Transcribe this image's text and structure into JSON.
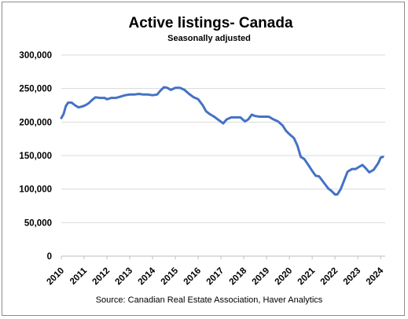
{
  "chart_data": {
    "type": "line",
    "title": "Active listings- Canada",
    "subtitle": "Seasonally adjusted",
    "source": "Source: Canadian Real Estate Association, Haver Analytics",
    "xlabel": "",
    "ylabel": "",
    "ylim": [
      0,
      300000
    ],
    "yticks": [
      0,
      50000,
      100000,
      150000,
      200000,
      250000,
      300000
    ],
    "ytick_labels": [
      "0",
      "50,000",
      "100,000",
      "150,000",
      "200,000",
      "250,000",
      "300,000"
    ],
    "xlim": [
      2010,
      2024.2
    ],
    "xticks": [
      2010,
      2011,
      2012,
      2013,
      2014,
      2015,
      2016,
      2017,
      2018,
      2019,
      2020,
      2021,
      2022,
      2023,
      2024
    ],
    "xtick_labels": [
      "2010",
      "2011",
      "2012",
      "2013",
      "2014",
      "2015",
      "2016",
      "2017",
      "2018",
      "2019",
      "2020",
      "2021",
      "2022",
      "2023",
      "2024"
    ],
    "grid": "horizontal",
    "series_color": "#4472C4",
    "series": [
      {
        "x": [
          2010.0,
          2010.1,
          2010.2,
          2010.3,
          2010.45,
          2010.6,
          2010.75,
          2010.9,
          2011.05,
          2011.2,
          2011.35,
          2011.5,
          2011.7,
          2011.9,
          2012.0,
          2012.2,
          2012.4,
          2012.6,
          2012.8,
          2013.0,
          2013.2,
          2013.4,
          2013.6,
          2013.8,
          2014.0,
          2014.2,
          2014.35,
          2014.5,
          2014.65,
          2014.8,
          2015.0,
          2015.2,
          2015.4,
          2015.6,
          2015.8,
          2016.0,
          2016.2,
          2016.35,
          2016.5,
          2016.7,
          2016.9,
          2017.1,
          2017.25,
          2017.45,
          2017.65,
          2017.85,
          2018.05,
          2018.2,
          2018.35,
          2018.5,
          2018.7,
          2018.9,
          2019.1,
          2019.3,
          2019.5,
          2019.7,
          2019.85,
          2020.0,
          2020.2,
          2020.35,
          2020.5,
          2020.65,
          2020.85,
          2021.0,
          2021.15,
          2021.3,
          2021.5,
          2021.7,
          2021.85,
          2022.0,
          2022.1,
          2022.25,
          2022.4,
          2022.55,
          2022.75,
          2022.9,
          2023.05,
          2023.2,
          2023.35,
          2023.5,
          2023.7,
          2023.9,
          2024.0,
          2024.1
        ],
        "values": [
          206000,
          212000,
          224000,
          229000,
          229000,
          225000,
          222000,
          223000,
          225000,
          228000,
          233000,
          237000,
          236000,
          236000,
          234000,
          236000,
          236000,
          238000,
          240000,
          241000,
          241000,
          242000,
          241000,
          241000,
          240000,
          241000,
          247000,
          252000,
          251000,
          248000,
          251000,
          251000,
          248000,
          242000,
          237000,
          234000,
          225000,
          216000,
          212000,
          208000,
          203000,
          198000,
          204000,
          207000,
          207000,
          207000,
          201000,
          204000,
          211000,
          209000,
          208000,
          208000,
          208000,
          204000,
          201000,
          195000,
          187000,
          182000,
          176000,
          165000,
          148000,
          145000,
          135000,
          127000,
          120000,
          119000,
          110000,
          101000,
          97000,
          92000,
          92000,
          100000,
          113000,
          126000,
          130000,
          130000,
          133000,
          136000,
          131000,
          125000,
          129000,
          139000,
          147000,
          148000
        ]
      }
    ]
  }
}
